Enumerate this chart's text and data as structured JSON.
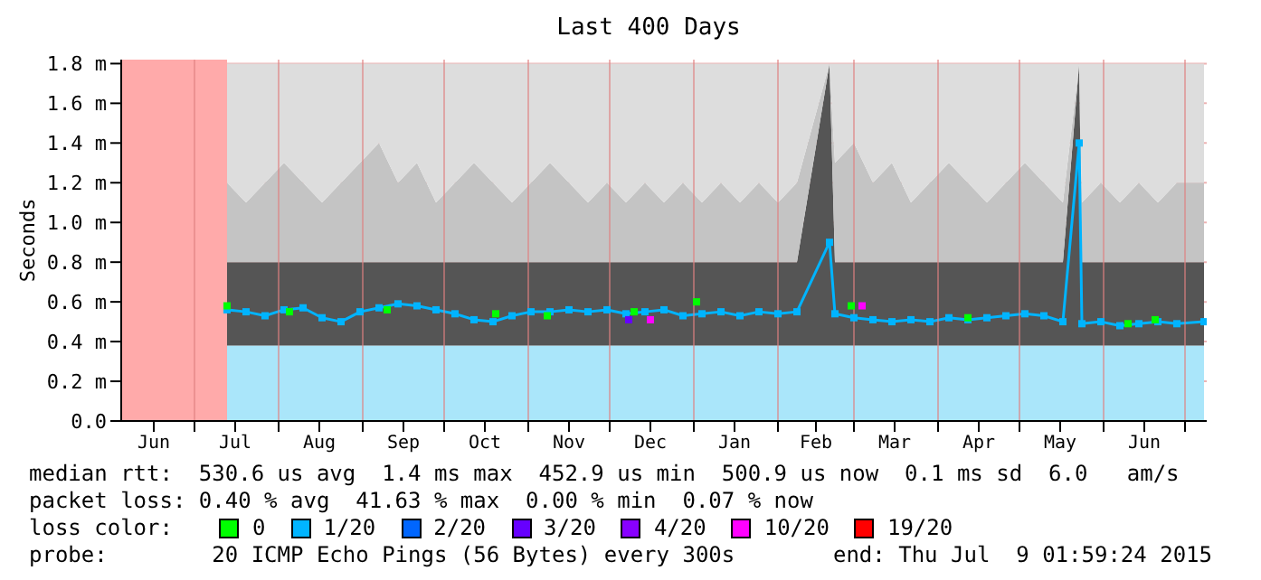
{
  "chart_data": {
    "type": "line",
    "title": "Last 400 Days",
    "ylabel": "Seconds",
    "x": [
      "2014-07-13",
      "2014-07-20",
      "2014-07-27",
      "2014-08-03",
      "2014-08-10",
      "2014-08-17",
      "2014-08-24",
      "2014-08-31",
      "2014-09-07",
      "2014-09-14",
      "2014-09-21",
      "2014-09-28",
      "2014-10-05",
      "2014-10-12",
      "2014-10-19",
      "2014-10-26",
      "2014-11-02",
      "2014-11-09",
      "2014-11-16",
      "2014-11-23",
      "2014-11-30",
      "2014-12-07",
      "2014-12-14",
      "2014-12-21",
      "2014-12-28",
      "2015-01-04",
      "2015-01-11",
      "2015-01-18",
      "2015-01-25",
      "2015-02-01",
      "2015-02-08",
      "2015-02-20",
      "2015-02-22",
      "2015-03-01",
      "2015-03-08",
      "2015-03-15",
      "2015-03-22",
      "2015-03-29",
      "2015-04-05",
      "2015-04-12",
      "2015-04-19",
      "2015-04-26",
      "2015-05-03",
      "2015-05-10",
      "2015-05-17",
      "2015-05-23",
      "2015-05-24",
      "2015-05-31",
      "2015-06-07",
      "2015-06-14",
      "2015-06-21",
      "2015-06-28",
      "2015-07-08"
    ],
    "series": [
      {
        "type": "area",
        "color": "#aae6fa",
        "values": [
          0.38,
          0.38,
          0.38,
          0.38,
          0.38,
          0.38,
          0.38,
          0.38,
          0.38,
          0.38,
          0.38,
          0.38,
          0.38,
          0.38,
          0.38,
          0.38,
          0.38,
          0.38,
          0.38,
          0.38,
          0.38,
          0.38,
          0.38,
          0.38,
          0.38,
          0.38,
          0.38,
          0.38,
          0.38,
          0.38,
          0.38,
          0.38,
          0.38,
          0.38,
          0.38,
          0.38,
          0.38,
          0.38,
          0.38,
          0.38,
          0.38,
          0.38,
          0.38,
          0.38,
          0.38,
          0.38,
          0.38,
          0.38,
          0.38,
          0.38,
          0.38,
          0.38,
          0.38
        ]
      },
      {
        "type": "area",
        "color": "#555555",
        "values": [
          0.42,
          0.42,
          0.42,
          0.42,
          0.42,
          0.42,
          0.42,
          0.42,
          0.42,
          0.42,
          0.42,
          0.42,
          0.42,
          0.42,
          0.42,
          0.42,
          0.42,
          0.42,
          0.42,
          0.42,
          0.42,
          0.42,
          0.42,
          0.42,
          0.42,
          0.42,
          0.42,
          0.42,
          0.42,
          0.42,
          0.42,
          1.42,
          0.42,
          0.42,
          0.42,
          0.42,
          0.42,
          0.42,
          0.42,
          0.42,
          0.42,
          0.42,
          0.42,
          0.42,
          0.42,
          1.42,
          0.42,
          0.42,
          0.42,
          0.42,
          0.42,
          0.42,
          0.42
        ]
      },
      {
        "type": "area",
        "color": "#c4c4c4",
        "values": [
          0.4,
          0.3,
          0.4,
          0.5,
          0.4,
          0.3,
          0.4,
          0.5,
          0.6,
          0.4,
          0.5,
          0.3,
          0.4,
          0.5,
          0.4,
          0.3,
          0.4,
          0.5,
          0.4,
          0.3,
          0.4,
          0.3,
          0.4,
          0.3,
          0.4,
          0.3,
          0.4,
          0.3,
          0.4,
          0.3,
          0.4,
          0,
          0.5,
          0.6,
          0.4,
          0.5,
          0.3,
          0.4,
          0.5,
          0.4,
          0.3,
          0.4,
          0.5,
          0.4,
          0.3,
          0,
          0.3,
          0.4,
          0.3,
          0.4,
          0.3,
          0.4,
          0.4
        ]
      },
      {
        "type": "area",
        "color": "#dddddd",
        "values": [
          0.6,
          0.7,
          0.6,
          0.5,
          0.6,
          0.7,
          0.6,
          0.5,
          0.4,
          0.6,
          0.5,
          0.7,
          0.6,
          0.5,
          0.6,
          0.7,
          0.6,
          0.5,
          0.6,
          0.7,
          0.6,
          0.7,
          0.6,
          0.7,
          0.6,
          0.7,
          0.6,
          0.7,
          0.6,
          0.7,
          0.6,
          0,
          0.5,
          0.4,
          0.6,
          0.5,
          0.7,
          0.6,
          0.5,
          0.6,
          0.7,
          0.6,
          0.5,
          0.6,
          0.7,
          0,
          0.7,
          0.6,
          0.7,
          0.6,
          0.7,
          0.6,
          0.6
        ]
      },
      {
        "type": "scatter",
        "name": "0",
        "color": "#00ff00",
        "x": [
          "2014-07-13",
          "2014-08-05",
          "2014-09-10",
          "2014-10-20",
          "2014-11-08",
          "2014-12-10",
          "2015-01-02",
          "2015-02-28",
          "2015-04-12",
          "2015-06-10",
          "2015-06-20"
        ],
        "values": [
          0.58,
          0.55,
          0.56,
          0.54,
          0.53,
          0.55,
          0.6,
          0.58,
          0.52,
          0.49,
          0.51
        ]
      },
      {
        "name": "1/20",
        "color": "#00b4ff",
        "marker": "square",
        "values": [
          0.56,
          0.55,
          0.53,
          0.56,
          0.57,
          0.52,
          0.5,
          0.55,
          0.57,
          0.59,
          0.58,
          0.56,
          0.54,
          0.51,
          0.5,
          0.53,
          0.55,
          0.55,
          0.56,
          0.55,
          0.56,
          0.54,
          0.55,
          0.56,
          0.53,
          0.54,
          0.55,
          0.53,
          0.55,
          0.54,
          0.55,
          0.9,
          0.54,
          0.52,
          0.51,
          0.5,
          0.51,
          0.5,
          0.52,
          0.51,
          0.52,
          0.53,
          0.54,
          0.53,
          0.5,
          1.4,
          0.49,
          0.5,
          0.48,
          0.49,
          0.5,
          0.49,
          0.5
        ]
      },
      {
        "type": "scatter",
        "name": "2/20",
        "color": "#0066ff",
        "values": [
          null,
          null,
          null,
          null,
          null,
          null,
          null,
          null,
          null,
          null,
          null,
          null,
          null,
          null,
          null,
          null,
          null,
          null,
          null,
          null,
          null,
          null,
          null,
          null,
          null,
          null,
          null,
          null,
          null,
          null,
          null,
          null,
          null,
          null,
          null,
          null,
          null,
          null,
          null,
          null,
          null,
          null,
          null,
          null,
          null,
          null,
          null,
          null,
          null,
          null,
          null,
          null,
          null
        ]
      },
      {
        "type": "scatter",
        "name": "3/20",
        "color": "#6600ff",
        "x": [
          "2014-12-08"
        ],
        "values": [
          0.51
        ]
      },
      {
        "type": "scatter",
        "name": "4/20",
        "color": "#8800ff",
        "values": [
          null,
          null,
          null,
          null,
          null,
          null,
          null,
          null,
          null,
          null,
          null,
          null,
          null,
          null,
          null,
          null,
          null,
          null,
          null,
          null,
          null,
          null,
          null,
          null,
          null,
          null,
          null,
          null,
          null,
          null,
          null,
          null,
          null,
          null,
          null,
          null,
          null,
          null,
          null,
          null,
          null,
          null,
          null,
          null,
          null,
          null,
          null,
          null,
          null,
          null,
          null,
          null,
          null
        ]
      },
      {
        "type": "scatter",
        "name": "10/20",
        "color": "#ff00ff",
        "x": [
          "2014-12-16",
          "2015-03-04"
        ],
        "values": [
          0.51,
          0.58
        ]
      },
      {
        "type": "scatter",
        "name": "19/20",
        "color": "#ff0000",
        "values": [
          null,
          null,
          null,
          null,
          null,
          null,
          null,
          null,
          null,
          null,
          null,
          null,
          null,
          null,
          null,
          null,
          null,
          null,
          null,
          null,
          null,
          null,
          null,
          null,
          null,
          null,
          null,
          null,
          null,
          null,
          null,
          null,
          null,
          null,
          null,
          null,
          null,
          null,
          null,
          null,
          null,
          null,
          null,
          null,
          null,
          null,
          null,
          null,
          null,
          null,
          null,
          null,
          null
        ]
      }
    ],
    "bands": [
      {
        "axis": "x",
        "from": "2014-06-04",
        "to": "2014-07-13",
        "color": "#ffaaaa"
      }
    ],
    "xlim": [
      "2014-06-04",
      "2015-07-09"
    ],
    "xticks": [
      {
        "value": "2014-06-16",
        "label": "Jun"
      },
      {
        "value": "2014-07-01",
        "label": null
      },
      {
        "value": "2014-07-16",
        "label": "Jul"
      },
      {
        "value": "2014-08-01",
        "label": null
      },
      {
        "value": "2014-08-16",
        "label": "Aug"
      },
      {
        "value": "2014-09-01",
        "label": null
      },
      {
        "value": "2014-09-16",
        "label": "Sep"
      },
      {
        "value": "2014-10-01",
        "label": null
      },
      {
        "value": "2014-10-16",
        "label": "Oct"
      },
      {
        "value": "2014-11-01",
        "label": null
      },
      {
        "value": "2014-11-16",
        "label": "Nov"
      },
      {
        "value": "2014-12-01",
        "label": null
      },
      {
        "value": "2014-12-16",
        "label": "Dec"
      },
      {
        "value": "2015-01-01",
        "label": null
      },
      {
        "value": "2015-01-16",
        "label": "Jan"
      },
      {
        "value": "2015-02-01",
        "label": null
      },
      {
        "value": "2015-02-15",
        "label": "Feb"
      },
      {
        "value": "2015-03-01",
        "label": null
      },
      {
        "value": "2015-03-16",
        "label": "Mar"
      },
      {
        "value": "2015-04-01",
        "label": null
      },
      {
        "value": "2015-04-16",
        "label": "Apr"
      },
      {
        "value": "2015-05-01",
        "label": null
      },
      {
        "value": "2015-05-16",
        "label": "May"
      },
      {
        "value": "2015-06-01",
        "label": null
      },
      {
        "value": "2015-06-16",
        "label": "Jun"
      },
      {
        "value": "2015-07-01",
        "label": null
      }
    ],
    "ylim": [
      0,
      1.82
    ],
    "yticks": [
      {
        "value": 0,
        "label": "0.0"
      },
      {
        "value": 0.2,
        "label": "0.2 m"
      },
      {
        "value": 0.4,
        "label": "0.4 m"
      },
      {
        "value": 0.6,
        "label": "0.6 m"
      },
      {
        "value": 0.8,
        "label": "0.8 m"
      },
      {
        "value": 1,
        "label": "1.0 m"
      },
      {
        "value": 1.2,
        "label": "1.2 m"
      },
      {
        "value": 1.4,
        "label": "1.4 m"
      },
      {
        "value": 1.6,
        "label": "1.6 m"
      },
      {
        "value": 1.8,
        "label": "1.8 m"
      }
    ],
    "stacked": true,
    "grid": true,
    "legend": "bottom",
    "legend_title": "loss color:",
    "annotations": [
      "median rtt:  530.6 us avg  1.4 ms max  452.9 us min  500.9 us now  0.1 ms sd  6.0   am/s",
      "packet loss: 0.40 % avg  41.63 % max  0.00 % min  0.07 % now",
      "probe:        20 ICMP Echo Pings (56 Bytes) every 300s",
      "end: Thu Jul  9 01:59:24 2015"
    ]
  }
}
